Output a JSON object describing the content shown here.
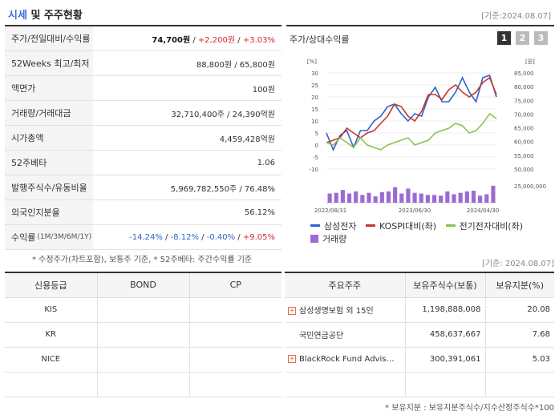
{
  "header": {
    "title_main": "시세",
    "title_rest": " 및 주주현황",
    "basedate": "[기준:2024.08.07]"
  },
  "quote_rows": [
    {
      "key": "주가/전일대비/수익률",
      "price": "74,700원",
      "change": "+2,200원",
      "rate": "+3.03%"
    },
    {
      "key": "52Weeks 최고/최저",
      "value": "88,800원 / 65,800원"
    },
    {
      "key": "액면가",
      "value": "100원"
    },
    {
      "key": "거래량/거래대금",
      "value": "32,710,400주 / 24,390억원"
    },
    {
      "key": "시가총액",
      "value": "4,459,428억원"
    },
    {
      "key": "52주베타",
      "value": "1.06"
    },
    {
      "key": "발행주식수/유동비율",
      "value": "5,969,782,550주 / 76.48%"
    },
    {
      "key": "외국인지분율",
      "value": "56.12%"
    },
    {
      "key": "수익률",
      "key_small": "(1M/3M/6M/1Y)",
      "r1": "-14.24%",
      "r2": "-8.12%",
      "r3": "-0.40%",
      "r4": "+9.05%"
    }
  ],
  "footnote1": "* 수정주가(차트포함), 보통주 기준, * 52주베타: 주간수익률 기준",
  "chart_panel": {
    "title": "주가/상대수익률",
    "tabs": [
      "1",
      "2",
      "3"
    ],
    "active_tab": "1"
  },
  "chart_data": {
    "type": "line",
    "left_axis_unit": "[%]",
    "right_axis_unit": "[원]",
    "left_ticks": [
      "30",
      "25",
      "20",
      "15",
      "10",
      "5",
      "0",
      "-5",
      "-10"
    ],
    "right_ticks": [
      "85,000",
      "80,000",
      "75,000",
      "70,000",
      "65,000",
      "60,000",
      "55,000",
      "50,000"
    ],
    "volume_tick": "25,000,000",
    "x_labels": [
      "2022/08/31",
      "2023/06/30",
      "2024/04/30"
    ],
    "ylim_left": [
      -10,
      30
    ],
    "ylim_right": [
      50000,
      85000
    ],
    "series": [
      {
        "name": "삼성전자",
        "color": "#2f63c9",
        "values": [
          5,
          -2,
          4,
          6,
          -1,
          6,
          6,
          10,
          12,
          16,
          17,
          13,
          10,
          13,
          12,
          20,
          24,
          18,
          18,
          22,
          28,
          22,
          18,
          28,
          29,
          20
        ]
      },
      {
        "name": "KOSPI대비(좌)",
        "color": "#c8362a",
        "values": [
          1,
          2,
          3,
          7,
          5,
          3,
          5,
          6,
          9,
          12,
          17,
          16,
          12,
          10,
          14,
          21,
          21,
          19,
          23,
          25,
          22,
          20,
          22,
          26,
          28,
          21
        ]
      },
      {
        "name": "전기전자대비(좌)",
        "color": "#8bc34a",
        "values": [
          1,
          0,
          3,
          1,
          -1,
          3,
          0,
          -1,
          -2,
          0,
          1,
          2,
          3,
          0,
          1,
          2,
          5,
          6,
          7,
          9,
          8,
          5,
          6,
          9,
          13,
          11
        ]
      }
    ],
    "volume": {
      "name": "거래량",
      "color": "#9b6bd3",
      "values": [
        13,
        14,
        18,
        13,
        16,
        11,
        14,
        9,
        15,
        16,
        22,
        13,
        20,
        14,
        13,
        11,
        11,
        10,
        16,
        12,
        14,
        16,
        17,
        10,
        12,
        24
      ]
    }
  },
  "basedate2": "[기준: 2024.08.07]",
  "credit": {
    "headers": [
      "신용등급",
      "BOND",
      "CP"
    ],
    "rows": [
      [
        "KIS",
        "",
        ""
      ],
      [
        "KR",
        "",
        ""
      ],
      [
        "NICE",
        "",
        ""
      ],
      [
        "",
        "",
        ""
      ]
    ]
  },
  "holders": {
    "headers": [
      "주요주주",
      "보유주식수(보통)",
      "보유지분(%)"
    ],
    "rows": [
      {
        "name": "삼성생명보험 외 15인",
        "shares": "1,198,888,008",
        "pct": "20.08",
        "plus": true
      },
      {
        "name": "국민연금공단",
        "shares": "458,637,667",
        "pct": "7.68",
        "plus": false
      },
      {
        "name": "BlackRock Fund Advis…",
        "shares": "300,391,061",
        "pct": "5.03",
        "plus": true
      },
      {
        "name": "",
        "shares": "",
        "pct": "",
        "plus": false
      }
    ]
  },
  "footnote2": "* 보유지분 : 보유지분주식수/지수산정주식수*100"
}
